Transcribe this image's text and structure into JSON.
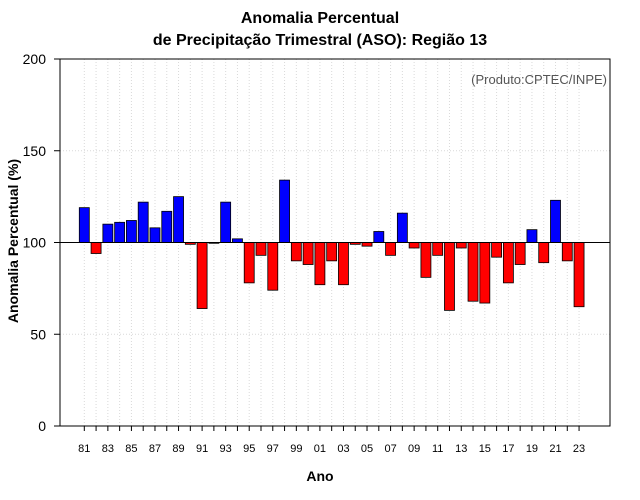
{
  "chart_data": {
    "type": "bar",
    "title": "Anomalia Percentual",
    "subtitle": "de Precipitação Trimestral (ASO): Região 13",
    "credit": "(Produto:CPTEC/INPE)",
    "xlabel": "Ano",
    "ylabel": "Anomalia Percentual (%)",
    "ylim": [
      0,
      200
    ],
    "yticks": [
      0,
      50,
      100,
      150,
      200
    ],
    "baseline": 100,
    "grid": true,
    "colors": {
      "above": "#0000ff",
      "below": "#ff0000"
    },
    "categories": [
      "81",
      "82",
      "83",
      "84",
      "85",
      "86",
      "87",
      "88",
      "89",
      "90",
      "91",
      "92",
      "93",
      "94",
      "95",
      "96",
      "97",
      "98",
      "99",
      "00",
      "01",
      "02",
      "03",
      "04",
      "05",
      "06",
      "07",
      "08",
      "09",
      "10",
      "11",
      "12",
      "13",
      "14",
      "15",
      "16",
      "17",
      "18",
      "19",
      "20",
      "21",
      "22",
      "23"
    ],
    "xtick_labels": [
      "81",
      "83",
      "85",
      "87",
      "89",
      "91",
      "93",
      "95",
      "97",
      "99",
      "01",
      "03",
      "05",
      "07",
      "09",
      "11",
      "13",
      "15",
      "17",
      "19",
      "21",
      "23"
    ],
    "values": [
      119,
      94,
      110,
      111,
      112,
      122,
      108,
      117,
      125,
      99,
      64,
      100,
      122,
      102,
      78,
      93,
      74,
      134,
      90,
      88,
      77,
      90,
      77,
      99,
      98,
      106,
      93,
      116,
      97,
      81,
      93,
      63,
      97,
      68,
      67,
      92,
      78,
      88,
      107,
      89,
      123,
      90,
      65
    ]
  }
}
